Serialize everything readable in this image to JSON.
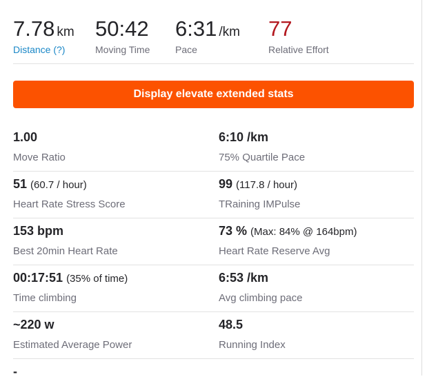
{
  "header_stats": [
    {
      "value": "7.78",
      "unit": "km",
      "label": "Distance (?)"
    },
    {
      "value": "50:42",
      "label": "Moving Time"
    },
    {
      "value": "6:31",
      "unit": "/km",
      "label": "Pace"
    },
    {
      "value": "77",
      "label": "Relative Effort"
    }
  ],
  "button": {
    "label": "Display elevate extended stats"
  },
  "stats": {
    "rows": [
      [
        {
          "value": "1.00",
          "label": "Move Ratio"
        },
        {
          "value": "6:10 /km",
          "label": "75% Quartile Pace"
        }
      ],
      [
        {
          "value": "51",
          "note": "(60.7 / hour)",
          "label": "Heart Rate Stress Score"
        },
        {
          "value": "99",
          "note": "(117.8 / hour)",
          "label": "TRaining IMPulse"
        }
      ],
      [
        {
          "value": "153 bpm",
          "label": "Best 20min Heart Rate"
        },
        {
          "value": "73 %",
          "note": "(Max: 84% @ 164bpm)",
          "label": "Heart Rate Reserve Avg"
        }
      ],
      [
        {
          "value": "00:17:51",
          "note": "(35% of time)",
          "label": "Time climbing"
        },
        {
          "value": "6:53 /km",
          "label": "Avg climbing pace"
        }
      ],
      [
        {
          "value": "~220 w",
          "label": "Estimated Average Power"
        },
        {
          "value": "48.5",
          "label": "Running Index"
        }
      ]
    ],
    "last": "-"
  }
}
